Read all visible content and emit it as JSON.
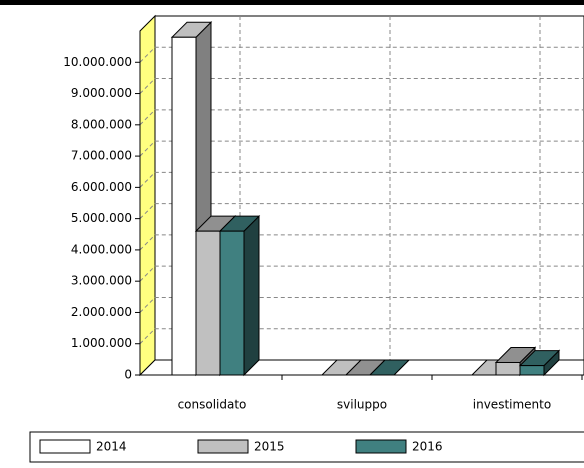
{
  "chart_data": {
    "type": "bar3d",
    "categories": [
      "consolidato",
      "sviluppo",
      "investimento"
    ],
    "series": [
      {
        "name": "2014",
        "color": "#ffffff",
        "values": [
          10800000,
          0,
          0
        ]
      },
      {
        "name": "2015",
        "color": "#c0c0c0",
        "values": [
          4600000,
          0,
          400000
        ]
      },
      {
        "name": "2016",
        "color": "#408080",
        "values": [
          4600000,
          0,
          300000
        ]
      }
    ],
    "ylim": [
      0,
      11000000
    ],
    "yticks": [
      0,
      {
        "value": 1000000,
        "label": "1.000.000"
      },
      {
        "value": 2000000,
        "label": "2.000.000"
      },
      {
        "value": 3000000,
        "label": "3.000.000"
      },
      {
        "value": 4000000,
        "label": "4.000.000"
      },
      {
        "value": 5000000,
        "label": "5.000.000"
      },
      {
        "value": 6000000,
        "label": "6.000.000"
      },
      {
        "value": 7000000,
        "label": "7.000.000"
      },
      {
        "value": 8000000,
        "label": "8.000.000"
      },
      {
        "value": 9000000,
        "label": "9.000.000"
      },
      {
        "value": 10000000,
        "label": "10.000.000"
      }
    ],
    "grid": true,
    "legend": "bottom"
  }
}
